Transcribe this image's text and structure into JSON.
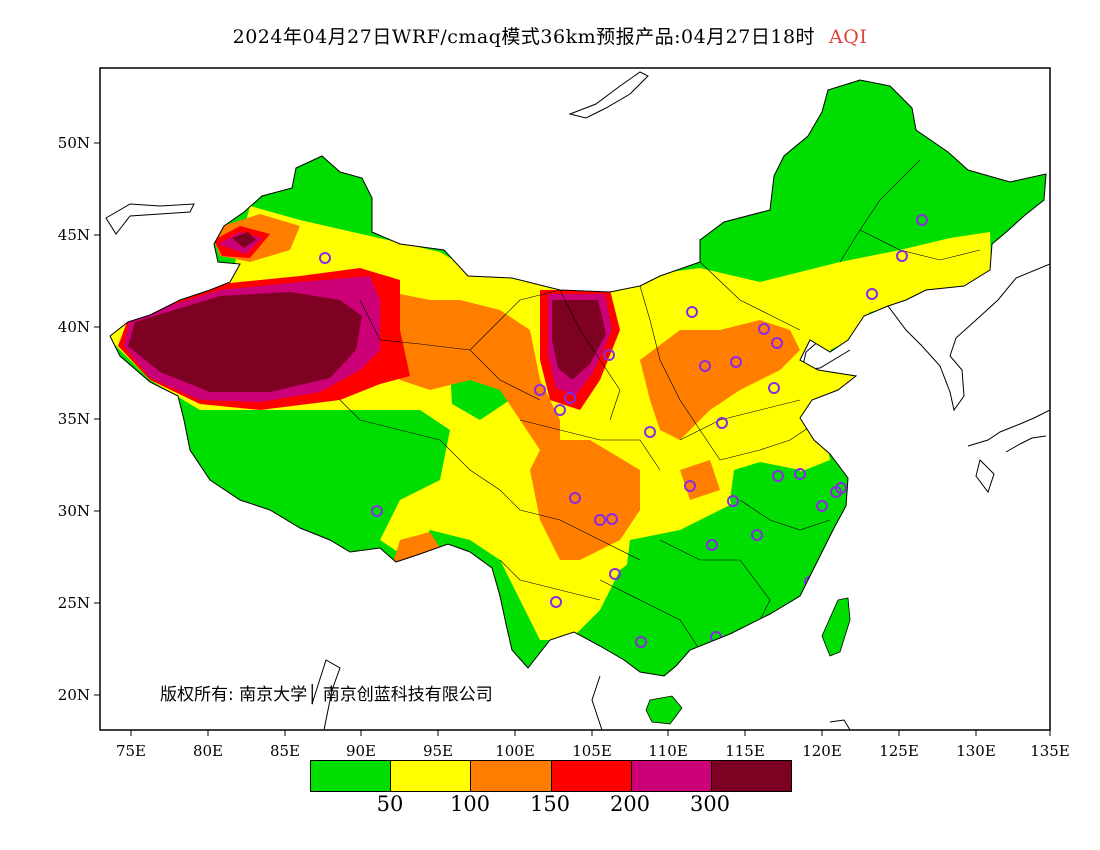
{
  "title": {
    "main": "2024年04月27日WRF/cmaq模式36km预报产品:04月27日18时",
    "variable": "AQI"
  },
  "colors": {
    "title_variable": "#e0423c",
    "level_1": "#00dd00",
    "level_2": "#ffff00",
    "level_3": "#ff7e00",
    "level_4": "#ff0000",
    "level_5": "#cc0077",
    "level_6": "#7e0023",
    "station_marker": "#8a2be2"
  },
  "axes": {
    "lon_labels": [
      "75E",
      "80E",
      "85E",
      "90E",
      "95E",
      "100E",
      "105E",
      "110E",
      "115E",
      "120E",
      "125E",
      "130E",
      "135E"
    ],
    "lat_labels": [
      "50N",
      "45N",
      "40N",
      "35N",
      "30N",
      "25N",
      "20N"
    ]
  },
  "copyright": "版权所有: 南京大学│ 南京创蓝科技有限公司",
  "legend": {
    "labels": [
      "50",
      "100",
      "150",
      "200",
      "300"
    ]
  },
  "station_count": 35
}
